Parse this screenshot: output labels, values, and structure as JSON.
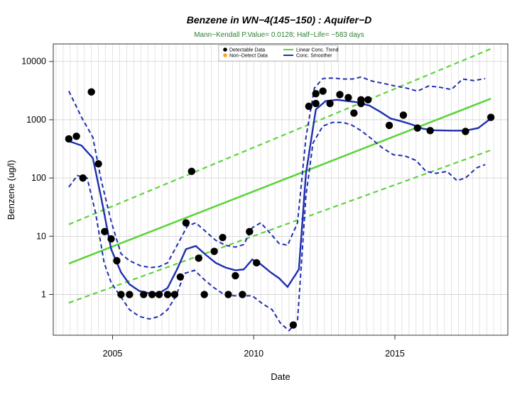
{
  "chart_data": {
    "type": "scatter",
    "title": "Benzene in WN−4(145−150) : Aquifer−D",
    "subtitle": "Mann−Kendall P.Value= 0.0128; Half−Life= −583 days",
    "xlabel": "Date",
    "ylabel": "Benzene (ug/l)",
    "xlim": [
      2002.9,
      2019.0
    ],
    "ylim": [
      0.2,
      20000
    ],
    "y_scale": "log",
    "grid": true,
    "legend_position": "top-center",
    "x_ticks": [
      2005,
      2010,
      2015
    ],
    "x_tick_labels": [
      "2005",
      "2010",
      "2015"
    ],
    "y_ticks": [
      1,
      10,
      100,
      1000,
      10000
    ],
    "y_tick_labels": [
      "1",
      "10",
      "100",
      "1000",
      "10000"
    ],
    "legend": [
      {
        "label": "Detectable Data",
        "kind": "point",
        "color": "#000000"
      },
      {
        "label": "Non−Detect Data",
        "kind": "point",
        "color": "#f5a623"
      },
      {
        "label": "Linear Conc. Trend",
        "kind": "line",
        "color": "#5bd53a"
      },
      {
        "label": "Conc. Smoother",
        "kind": "line",
        "color": "#1f2fb0"
      }
    ],
    "series": [
      {
        "name": "Detectable Data",
        "color": "#000000",
        "points": [
          [
            2003.45,
            470
          ],
          [
            2003.72,
            520
          ],
          [
            2003.95,
            100
          ],
          [
            2004.25,
            3000
          ],
          [
            2004.5,
            175
          ],
          [
            2004.72,
            12
          ],
          [
            2004.95,
            9
          ],
          [
            2005.15,
            3.8
          ],
          [
            2005.3,
            1
          ],
          [
            2005.6,
            1
          ],
          [
            2006.1,
            1
          ],
          [
            2006.4,
            1
          ],
          [
            2006.65,
            1
          ],
          [
            2006.95,
            1
          ],
          [
            2007.2,
            1
          ],
          [
            2007.4,
            2
          ],
          [
            2007.6,
            17
          ],
          [
            2007.8,
            130
          ],
          [
            2008.05,
            4.2
          ],
          [
            2008.25,
            1
          ],
          [
            2008.6,
            5.5
          ],
          [
            2008.9,
            9.5
          ],
          [
            2009.1,
            1
          ],
          [
            2009.35,
            2.1
          ],
          [
            2009.6,
            1
          ],
          [
            2009.85,
            12
          ],
          [
            2010.1,
            3.5
          ],
          [
            2011.4,
            0.3
          ],
          [
            2011.95,
            1700
          ],
          [
            2012.2,
            2800
          ],
          [
            2012.2,
            1900
          ],
          [
            2012.45,
            3100
          ],
          [
            2012.7,
            1900
          ],
          [
            2013.05,
            2700
          ],
          [
            2013.35,
            2400
          ],
          [
            2013.55,
            1300
          ],
          [
            2013.8,
            2200
          ],
          [
            2013.8,
            1900
          ],
          [
            2014.05,
            2200
          ],
          [
            2014.8,
            800
          ],
          [
            2015.3,
            1200
          ],
          [
            2015.8,
            720
          ],
          [
            2016.25,
            650
          ],
          [
            2017.5,
            630
          ],
          [
            2018.4,
            1100
          ]
        ]
      },
      {
        "name": "Conc. Smoother",
        "color": "#1f2fb0",
        "line": [
          [
            2003.45,
            430
          ],
          [
            2003.9,
            360
          ],
          [
            2004.3,
            220
          ],
          [
            2004.6,
            45
          ],
          [
            2004.95,
            6
          ],
          [
            2005.3,
            2.4
          ],
          [
            2005.6,
            1.5
          ],
          [
            2005.95,
            1.15
          ],
          [
            2006.3,
            1.05
          ],
          [
            2006.65,
            1.05
          ],
          [
            2006.95,
            1.3
          ],
          [
            2007.3,
            2.8
          ],
          [
            2007.6,
            6
          ],
          [
            2007.95,
            6.8
          ],
          [
            2008.3,
            4.8
          ],
          [
            2008.65,
            3.5
          ],
          [
            2009.0,
            2.9
          ],
          [
            2009.35,
            2.6
          ],
          [
            2009.65,
            2.7
          ],
          [
            2009.95,
            4.0
          ],
          [
            2010.25,
            3.3
          ],
          [
            2010.6,
            2.4
          ],
          [
            2010.9,
            1.9
          ],
          [
            2011.2,
            1.35
          ],
          [
            2011.6,
            2.7
          ],
          [
            2011.85,
            120
          ],
          [
            2012.2,
            1500
          ],
          [
            2012.55,
            2100
          ],
          [
            2012.95,
            2200
          ],
          [
            2013.3,
            2100
          ],
          [
            2013.65,
            2000
          ],
          [
            2014.1,
            1750
          ],
          [
            2014.5,
            1350
          ],
          [
            2014.85,
            1050
          ],
          [
            2015.2,
            950
          ],
          [
            2015.6,
            830
          ],
          [
            2016.0,
            700
          ],
          [
            2016.4,
            660
          ],
          [
            2017.0,
            650
          ],
          [
            2017.5,
            650
          ],
          [
            2017.95,
            720
          ],
          [
            2018.4,
            1050
          ]
        ]
      },
      {
        "name": "Smoother upper band",
        "color": "#1f2fb0",
        "line": [
          [
            2003.45,
            3100
          ],
          [
            2003.9,
            1100
          ],
          [
            2004.3,
            500
          ],
          [
            2004.6,
            90
          ],
          [
            2004.95,
            18
          ],
          [
            2005.3,
            5
          ],
          [
            2005.6,
            3.8
          ],
          [
            2006.0,
            3.1
          ],
          [
            2006.35,
            2.9
          ],
          [
            2006.65,
            3.0
          ],
          [
            2006.95,
            3.5
          ],
          [
            2007.35,
            8
          ],
          [
            2007.65,
            15
          ],
          [
            2007.95,
            17
          ],
          [
            2008.3,
            12
          ],
          [
            2008.65,
            8.5
          ],
          [
            2009.0,
            7
          ],
          [
            2009.35,
            6.5
          ],
          [
            2009.65,
            7.2
          ],
          [
            2009.95,
            14
          ],
          [
            2010.25,
            17
          ],
          [
            2010.6,
            11
          ],
          [
            2010.9,
            7.5
          ],
          [
            2011.2,
            7
          ],
          [
            2011.55,
            17
          ],
          [
            2011.85,
            500
          ],
          [
            2012.15,
            3500
          ],
          [
            2012.45,
            5100
          ],
          [
            2012.8,
            5200
          ],
          [
            2013.15,
            5000
          ],
          [
            2013.5,
            5000
          ],
          [
            2013.8,
            5400
          ],
          [
            2014.2,
            4600
          ],
          [
            2014.6,
            4200
          ],
          [
            2015.0,
            3800
          ],
          [
            2015.4,
            3500
          ],
          [
            2015.8,
            3100
          ],
          [
            2016.2,
            3800
          ],
          [
            2016.6,
            3600
          ],
          [
            2017.0,
            3300
          ],
          [
            2017.4,
            5000
          ],
          [
            2017.8,
            4700
          ],
          [
            2018.2,
            5100
          ]
        ]
      },
      {
        "name": "Smoother lower band",
        "color": "#1f2fb0",
        "line": [
          [
            2003.45,
            70
          ],
          [
            2003.75,
            110
          ],
          [
            2004.1,
            100
          ],
          [
            2004.4,
            25
          ],
          [
            2004.7,
            3.5
          ],
          [
            2004.95,
            1.6
          ],
          [
            2005.3,
            0.9
          ],
          [
            2005.6,
            0.55
          ],
          [
            2005.95,
            0.42
          ],
          [
            2006.3,
            0.38
          ],
          [
            2006.65,
            0.42
          ],
          [
            2006.95,
            0.55
          ],
          [
            2007.25,
            0.95
          ],
          [
            2007.55,
            2.3
          ],
          [
            2007.9,
            2.6
          ],
          [
            2008.25,
            1.8
          ],
          [
            2008.6,
            1.3
          ],
          [
            2008.95,
            1.0
          ],
          [
            2009.3,
            0.95
          ],
          [
            2009.6,
            0.95
          ],
          [
            2009.95,
            0.95
          ],
          [
            2010.3,
            0.7
          ],
          [
            2010.65,
            0.55
          ],
          [
            2010.95,
            0.32
          ],
          [
            2011.25,
            0.24
          ],
          [
            2011.55,
            0.35
          ],
          [
            2011.85,
            50
          ],
          [
            2012.1,
            400
          ],
          [
            2012.45,
            780
          ],
          [
            2012.8,
            900
          ],
          [
            2013.15,
            900
          ],
          [
            2013.45,
            820
          ],
          [
            2013.8,
            650
          ],
          [
            2014.15,
            480
          ],
          [
            2014.55,
            330
          ],
          [
            2014.95,
            250
          ],
          [
            2015.35,
            240
          ],
          [
            2015.75,
            200
          ],
          [
            2016.1,
            130
          ],
          [
            2016.45,
            120
          ],
          [
            2016.85,
            130
          ],
          [
            2017.2,
            90
          ],
          [
            2017.5,
            100
          ],
          [
            2017.9,
            150
          ],
          [
            2018.2,
            170
          ]
        ]
      },
      {
        "name": "Linear Conc. Trend",
        "color": "#5bd53a",
        "line": [
          [
            2003.45,
            3.4
          ],
          [
            2018.4,
            2300
          ]
        ]
      },
      {
        "name": "Trend upper bound",
        "color": "#5bd53a",
        "line": [
          [
            2003.45,
            16
          ],
          [
            2018.4,
            16500
          ]
        ]
      },
      {
        "name": "Trend lower bound",
        "color": "#5bd53a",
        "line": [
          [
            2003.45,
            0.72
          ],
          [
            2018.4,
            300
          ]
        ]
      }
    ]
  }
}
